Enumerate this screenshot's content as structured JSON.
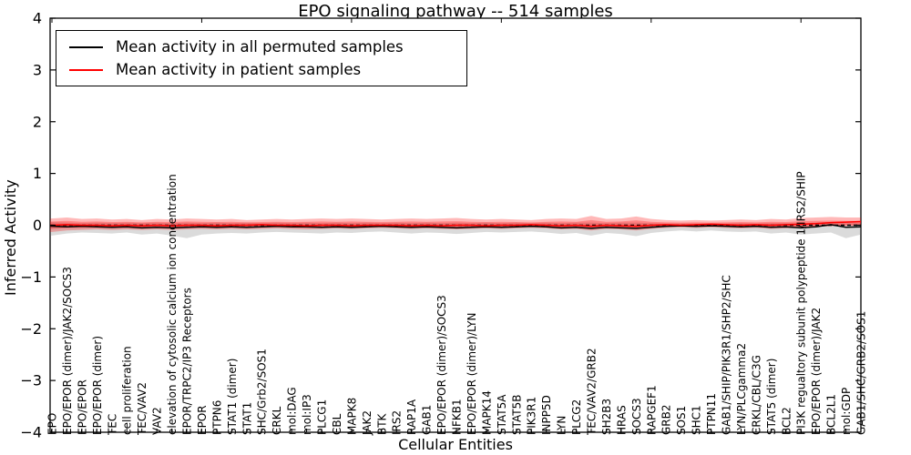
{
  "title": "EPO signaling pathway -- 514 samples",
  "axes": {
    "ylabel": "Inferred Activity",
    "xlabel": "Cellular Entities",
    "yticks": [
      4,
      3,
      2,
      1,
      0,
      -1,
      -2,
      -3,
      -4
    ],
    "ylim": [
      -4,
      4
    ]
  },
  "legend": {
    "items": [
      {
        "label": "Mean activity in all permuted samples",
        "color": "#000000"
      },
      {
        "label": "Mean activity in patient samples",
        "color": "#ff0000"
      }
    ]
  },
  "chart_data": {
    "type": "line",
    "title": "EPO signaling pathway -- 514 samples",
    "xlabel": "Cellular Entities",
    "ylabel": "Inferred Activity",
    "ylim": [
      -4,
      4
    ],
    "grid": false,
    "legend_position": "upper left",
    "categories": [
      "EPO",
      "EPO/EPOR (dimer)/JAK2/SOCS3",
      "EPO/EPOR",
      "EPO/EPOR (dimer)",
      "TEC",
      "cell proliferation",
      "TEC/VAV2",
      "VAV2",
      "elevation of cytosolic calcium ion concentration",
      "EPOR/TRPC2/IP3 Receptors",
      "EPOR",
      "PTPN6",
      "STAT1 (dimer)",
      "STAT1",
      "SHC/Grb2/SOS1",
      "CRKL",
      "mol:DAG",
      "mol:IP3",
      "PLCG1",
      "CBL",
      "MAPK8",
      "JAK2",
      "BTK",
      "IRS2",
      "RAP1A",
      "GAB1",
      "EPO/EPOR (dimer)/SOCS3",
      "NFKB1",
      "EPO/EPOR (dimer)/LYN",
      "MAPK14",
      "STAT5A",
      "STAT5B",
      "PIK3R1",
      "INPP5D",
      "LYN",
      "PLCG2",
      "TEC/VAV2/GRB2",
      "SH2B3",
      "HRAS",
      "SOCS3",
      "RAPGEF1",
      "GRB2",
      "SOS1",
      "SHC1",
      "PTPN11",
      "GAB1/SHIP/PIK3R1/SHP2/SHC",
      "LYN/PLCgamma2",
      "CRKL/CBL/C3G",
      "STAT5 (dimer)",
      "BCL2",
      "PI3K regualtory subunit polypeptide 1/IRS2/SHIP",
      "EPO/EPOR (dimer)/JAK2",
      "BCL2L1",
      "mol:GDP",
      "GAB1/SHC/GRB2/SOS1"
    ],
    "series": [
      {
        "name": "Mean activity in all permuted samples",
        "color": "#000000",
        "values": [
          -0.02,
          -0.03,
          -0.02,
          -0.03,
          -0.04,
          -0.03,
          -0.05,
          -0.04,
          -0.05,
          -0.04,
          -0.03,
          -0.04,
          -0.03,
          -0.04,
          -0.03,
          -0.02,
          -0.03,
          -0.03,
          -0.04,
          -0.03,
          -0.04,
          -0.03,
          -0.02,
          -0.03,
          -0.04,
          -0.03,
          -0.04,
          -0.05,
          -0.04,
          -0.03,
          -0.04,
          -0.03,
          -0.02,
          -0.03,
          -0.05,
          -0.04,
          -0.06,
          -0.04,
          -0.05,
          -0.06,
          -0.04,
          -0.02,
          -0.01,
          -0.02,
          -0.01,
          -0.02,
          -0.03,
          -0.02,
          -0.04,
          -0.03,
          -0.05,
          -0.03,
          0.01,
          -0.04,
          -0.03
        ]
      },
      {
        "name": "Mean activity in patient samples",
        "color": "#ff0000",
        "values": [
          0.0,
          0.01,
          0.0,
          0.0,
          -0.01,
          0.0,
          -0.01,
          0.0,
          -0.01,
          0.0,
          0.0,
          -0.01,
          0.0,
          0.0,
          0.01,
          0.0,
          0.0,
          -0.01,
          0.0,
          0.0,
          -0.01,
          0.0,
          0.0,
          0.0,
          -0.01,
          0.0,
          -0.01,
          0.0,
          0.0,
          -0.01,
          0.0,
          0.0,
          0.01,
          0.0,
          -0.01,
          0.0,
          -0.02,
          0.0,
          -0.01,
          -0.02,
          0.0,
          0.01,
          0.0,
          0.01,
          0.02,
          0.01,
          0.0,
          0.01,
          0.0,
          0.01,
          0.02,
          0.03,
          0.05,
          0.06,
          0.07
        ]
      }
    ],
    "bands": [
      {
        "name": "permuted samples spread",
        "color": "rgba(110,110,110,0.25)",
        "upper": [
          0.06,
          0.05,
          0.04,
          0.05,
          0.04,
          0.05,
          0.04,
          0.05,
          0.04,
          0.05,
          0.04,
          0.05,
          0.04,
          0.05,
          0.04,
          0.05,
          0.04,
          0.05,
          0.04,
          0.05,
          0.04,
          0.05,
          0.04,
          0.05,
          0.04,
          0.05,
          0.04,
          0.05,
          0.04,
          0.05,
          0.04,
          0.05,
          0.04,
          0.05,
          0.04,
          0.05,
          0.05,
          0.04,
          0.05,
          0.05,
          0.04,
          0.03,
          0.03,
          0.03,
          0.03,
          0.03,
          0.04,
          0.03,
          0.04,
          0.04,
          0.04,
          0.05,
          0.06,
          0.04,
          0.04
        ],
        "lower": [
          -0.2,
          -0.16,
          -0.14,
          -0.15,
          -0.16,
          -0.14,
          -0.18,
          -0.16,
          -0.2,
          -0.25,
          -0.18,
          -0.16,
          -0.15,
          -0.16,
          -0.14,
          -0.13,
          -0.14,
          -0.15,
          -0.16,
          -0.14,
          -0.15,
          -0.13,
          -0.12,
          -0.14,
          -0.16,
          -0.14,
          -0.15,
          -0.17,
          -0.15,
          -0.13,
          -0.14,
          -0.13,
          -0.12,
          -0.14,
          -0.17,
          -0.15,
          -0.2,
          -0.15,
          -0.17,
          -0.21,
          -0.15,
          -0.12,
          -0.1,
          -0.12,
          -0.1,
          -0.12,
          -0.13,
          -0.12,
          -0.16,
          -0.14,
          -0.18,
          -0.16,
          -0.14,
          -0.25,
          -0.18
        ]
      },
      {
        "name": "patient samples spread",
        "color": "rgba(255,0,0,0.28)",
        "upper": [
          0.13,
          0.15,
          0.12,
          0.13,
          0.11,
          0.12,
          0.1,
          0.12,
          0.11,
          0.13,
          0.12,
          0.11,
          0.12,
          0.1,
          0.11,
          0.12,
          0.11,
          0.12,
          0.13,
          0.12,
          0.13,
          0.12,
          0.11,
          0.12,
          0.13,
          0.12,
          0.13,
          0.14,
          0.12,
          0.11,
          0.12,
          0.11,
          0.1,
          0.12,
          0.13,
          0.12,
          0.18,
          0.12,
          0.13,
          0.17,
          0.12,
          0.1,
          0.09,
          0.1,
          0.09,
          0.1,
          0.11,
          0.1,
          0.12,
          0.11,
          0.14,
          0.15,
          0.16,
          0.15,
          0.15
        ],
        "lower": [
          -0.13,
          -0.1,
          -0.09,
          -0.08,
          -0.09,
          -0.08,
          -0.09,
          -0.08,
          -0.09,
          -0.08,
          -0.07,
          -0.08,
          -0.07,
          -0.08,
          -0.07,
          -0.06,
          -0.07,
          -0.08,
          -0.07,
          -0.06,
          -0.07,
          -0.06,
          -0.05,
          -0.06,
          -0.07,
          -0.06,
          -0.07,
          -0.08,
          -0.07,
          -0.06,
          -0.07,
          -0.06,
          -0.05,
          -0.06,
          -0.08,
          -0.07,
          -0.1,
          -0.07,
          -0.08,
          -0.1,
          -0.07,
          -0.05,
          -0.04,
          -0.05,
          -0.04,
          -0.05,
          -0.06,
          -0.05,
          -0.07,
          -0.06,
          -0.05,
          -0.03,
          -0.02,
          -0.01,
          -0.01
        ]
      }
    ],
    "reference_line": {
      "y": 0,
      "style": "dashed",
      "color": "#000000"
    }
  }
}
